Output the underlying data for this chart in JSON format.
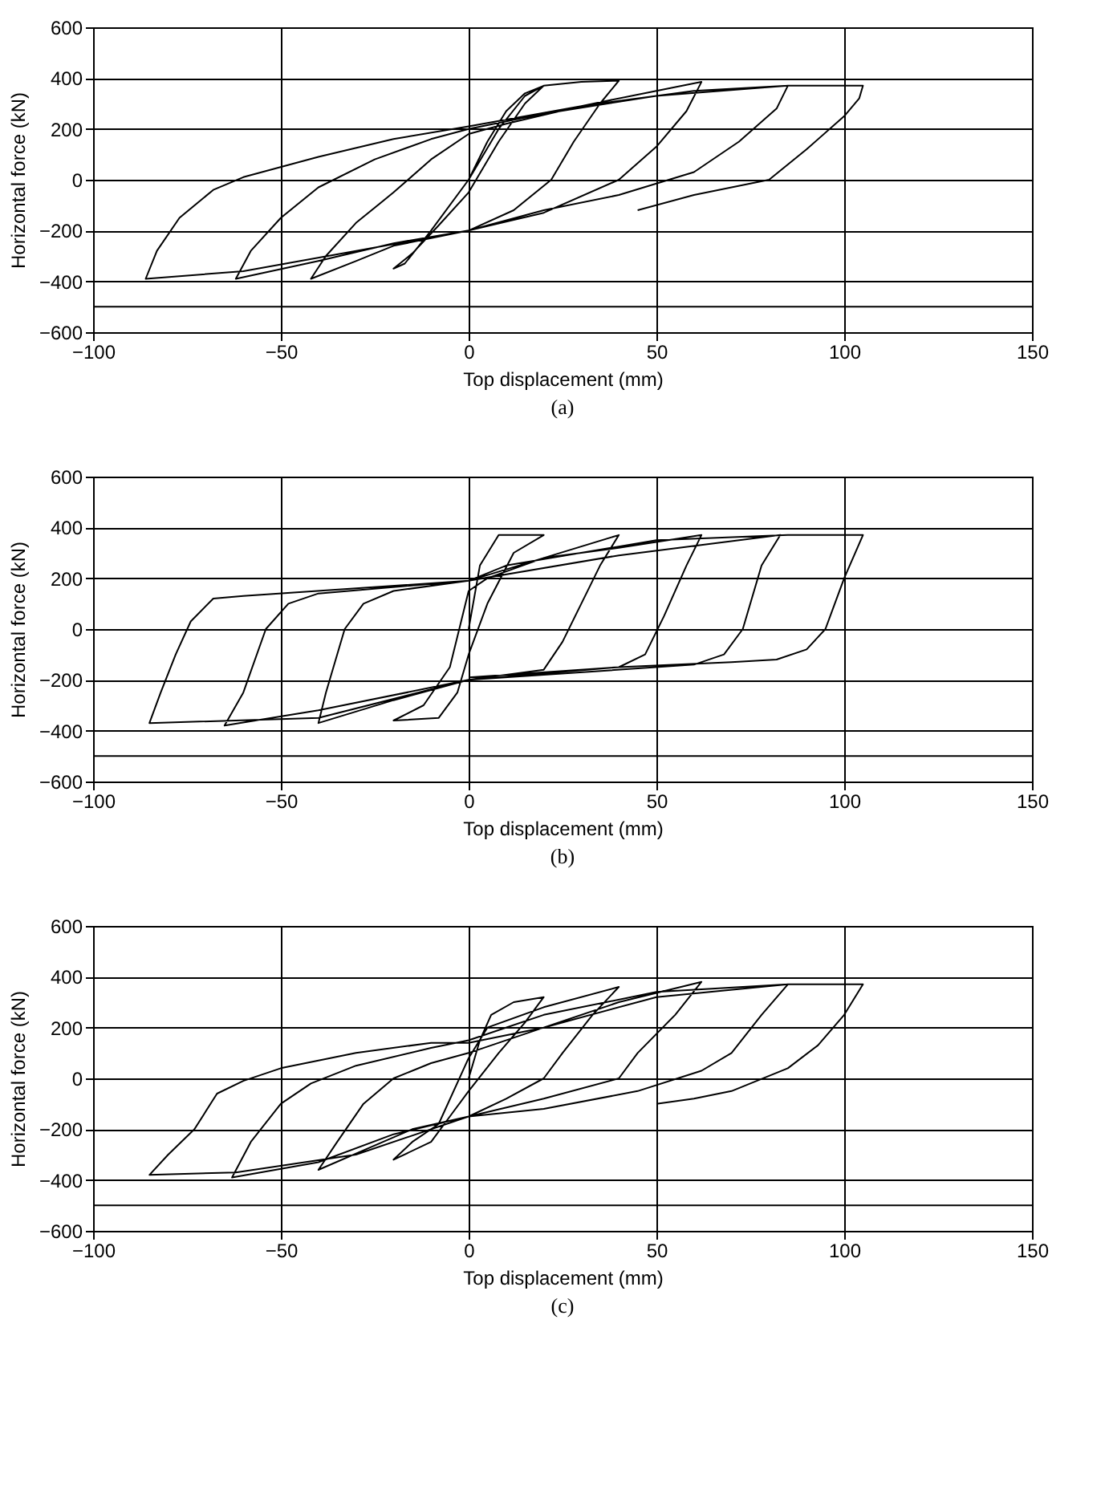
{
  "chart_data": [
    {
      "type": "line",
      "xlabel": "Top displacement (mm)",
      "ylabel": "Horizontal force (kN)",
      "annotations": [
        "(a)"
      ],
      "xlim": [
        -100,
        150
      ],
      "xticks": [
        -100,
        -50,
        0,
        50,
        100,
        150
      ],
      "ylim": [
        -600,
        600
      ],
      "yticks": [
        -600,
        -400,
        -200,
        0,
        200,
        400,
        600
      ],
      "grid": true,
      "ref_lines": [
        {
          "axis": "y",
          "value": -500,
          "label": null
        }
      ],
      "series": [
        {
          "color": "#000000",
          "x": [
            0,
            5,
            10,
            15,
            20,
            15,
            8,
            0,
            -8,
            -15,
            -20,
            -17,
            -10,
            0,
            8,
            15,
            20,
            30,
            40,
            35,
            28,
            22,
            12,
            0,
            -20,
            -30,
            -42,
            -38,
            -30,
            -20,
            -10,
            0,
            10,
            30,
            50,
            62,
            58,
            50,
            40,
            20,
            0,
            -20,
            -40,
            -62,
            -58,
            -50,
            -40,
            -25,
            -10,
            0,
            20,
            50,
            85,
            82,
            72,
            60,
            40,
            20,
            0,
            -30,
            -60,
            -86,
            -83,
            -77,
            -68,
            -60,
            -40,
            -20,
            0,
            30,
            60,
            85,
            105,
            104,
            100,
            90,
            80,
            60,
            45
          ],
          "values": [
            0,
            150,
            270,
            340,
            370,
            300,
            150,
            -50,
            -180,
            -290,
            -350,
            -330,
            -200,
            0,
            200,
            330,
            370,
            385,
            390,
            300,
            150,
            0,
            -120,
            -200,
            -260,
            -320,
            -390,
            -300,
            -170,
            -50,
            80,
            180,
            220,
            290,
            350,
            385,
            270,
            130,
            0,
            -130,
            -200,
            -250,
            -320,
            -390,
            -280,
            -150,
            -30,
            80,
            160,
            200,
            260,
            330,
            370,
            280,
            150,
            30,
            -60,
            -120,
            -200,
            -280,
            -360,
            -390,
            -280,
            -150,
            -40,
            10,
            90,
            160,
            210,
            290,
            350,
            370,
            370,
            320,
            250,
            120,
            0,
            -60,
            -120
          ]
        }
      ]
    },
    {
      "type": "line",
      "xlabel": "Top displacement (mm)",
      "ylabel": "Horizontal force (kN)",
      "annotations": [
        "(b)"
      ],
      "xlim": [
        -100,
        150
      ],
      "xticks": [
        -100,
        -50,
        0,
        50,
        100,
        150
      ],
      "ylim": [
        -600,
        600
      ],
      "yticks": [
        -600,
        -400,
        -200,
        0,
        200,
        400,
        600
      ],
      "grid": true,
      "ref_lines": [
        {
          "axis": "y",
          "value": -500,
          "label": null
        }
      ],
      "series": [
        {
          "color": "#000000",
          "x": [
            0,
            3,
            8,
            20,
            12,
            5,
            0,
            -3,
            -8,
            -20,
            -12,
            -5,
            0,
            5,
            20,
            40,
            35,
            30,
            25,
            20,
            0,
            -20,
            -40,
            -38,
            -33,
            -28,
            -20,
            0,
            20,
            40,
            62,
            58,
            52,
            47,
            40,
            0,
            -40,
            -65,
            -60,
            -54,
            -48,
            -40,
            0,
            40,
            83,
            78,
            73,
            68,
            60,
            0,
            -40,
            -85,
            -82,
            -78,
            -74,
            -68,
            -60,
            0,
            10,
            50,
            85,
            105,
            100,
            95,
            90,
            82,
            70,
            40,
            0
          ],
          "values": [
            0,
            250,
            370,
            370,
            300,
            100,
            -100,
            -250,
            -350,
            -360,
            -300,
            -150,
            150,
            200,
            280,
            370,
            250,
            100,
            -50,
            -160,
            -200,
            -280,
            -370,
            -250,
            0,
            100,
            150,
            190,
            280,
            320,
            370,
            250,
            50,
            -100,
            -150,
            -200,
            -320,
            -380,
            -250,
            0,
            100,
            140,
            190,
            290,
            370,
            250,
            0,
            -100,
            -140,
            -200,
            -350,
            -370,
            -250,
            -100,
            30,
            120,
            130,
            190,
            250,
            350,
            370,
            370,
            200,
            0,
            -80,
            -120,
            -130,
            -150,
            -190
          ]
        }
      ]
    },
    {
      "type": "line",
      "xlabel": "Top displacement (mm)",
      "ylabel": "Horizontal force (kN)",
      "annotations": [
        "(c)"
      ],
      "xlim": [
        -100,
        150
      ],
      "xticks": [
        -100,
        -50,
        0,
        50,
        100,
        150
      ],
      "ylim": [
        -600,
        600
      ],
      "yticks": [
        -600,
        -400,
        -200,
        0,
        200,
        400,
        600
      ],
      "grid": true,
      "ref_lines": [
        {
          "axis": "y",
          "value": -500,
          "label": null
        }
      ],
      "series": [
        {
          "color": "#000000",
          "x": [
            0,
            3,
            6,
            12,
            20,
            15,
            8,
            0,
            -5,
            -10,
            -20,
            -15,
            -8,
            0,
            5,
            20,
            40,
            33,
            25,
            20,
            10,
            0,
            -15,
            -40,
            -35,
            -28,
            -20,
            -10,
            0,
            20,
            40,
            62,
            55,
            45,
            40,
            20,
            0,
            -20,
            -40,
            -63,
            -58,
            -50,
            -42,
            -30,
            -10,
            0,
            20,
            50,
            85,
            78,
            70,
            62,
            45,
            20,
            0,
            -30,
            -62,
            -85,
            -80,
            -73,
            -67,
            -60,
            -50,
            -30,
            -10,
            0,
            20,
            50,
            85,
            105,
            100,
            93,
            85,
            70,
            60,
            50
          ],
          "values": [
            0,
            150,
            250,
            300,
            320,
            220,
            100,
            -50,
            -150,
            -250,
            -320,
            -250,
            -180,
            80,
            200,
            280,
            360,
            250,
            100,
            0,
            -80,
            -150,
            -200,
            -360,
            -250,
            -100,
            0,
            60,
            100,
            200,
            300,
            380,
            250,
            100,
            0,
            -80,
            -150,
            -220,
            -330,
            -390,
            -250,
            -100,
            -20,
            50,
            120,
            150,
            250,
            340,
            370,
            250,
            100,
            30,
            -50,
            -120,
            -150,
            -300,
            -370,
            -380,
            -300,
            -200,
            -60,
            -10,
            40,
            100,
            140,
            140,
            200,
            320,
            370,
            370,
            250,
            130,
            40,
            -50,
            -80,
            -100
          ]
        }
      ]
    }
  ]
}
